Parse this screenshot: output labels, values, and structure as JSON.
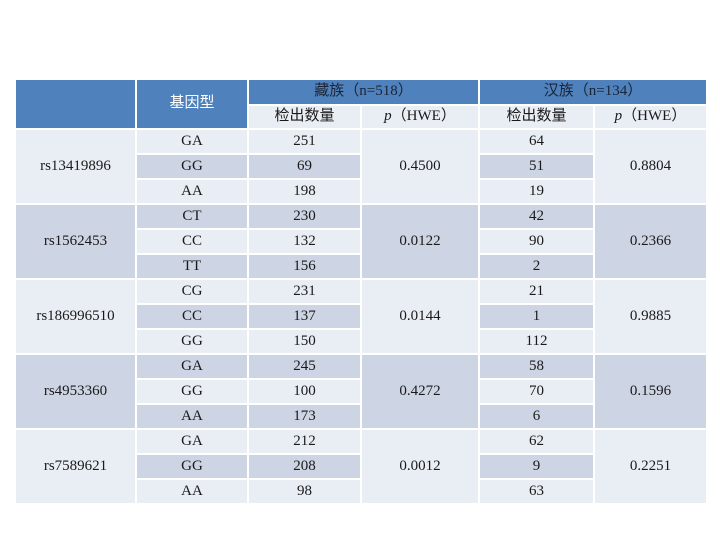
{
  "table": {
    "header": {
      "corner": "",
      "genotype": "基因型",
      "groups": [
        {
          "label": "藏族（n=518）",
          "count_label": "检出数量",
          "p_italic": "p",
          "p_rest": "（HWE）"
        },
        {
          "label": "汉族（n=134）",
          "count_label": "检出数量",
          "p_italic": "p",
          "p_rest": "（HWE）"
        }
      ]
    },
    "rows": [
      {
        "snp": "rs13419896",
        "genotypes": [
          "GA",
          "GG",
          "AA"
        ],
        "tibetan_counts": [
          251,
          69,
          198
        ],
        "tibetan_p": "0.4500",
        "han_counts": [
          64,
          51,
          19
        ],
        "han_p": "0.8804"
      },
      {
        "snp": "rs1562453",
        "genotypes": [
          "CT",
          "CC",
          "TT"
        ],
        "tibetan_counts": [
          230,
          132,
          156
        ],
        "tibetan_p": "0.0122",
        "han_counts": [
          42,
          90,
          2
        ],
        "han_p": "0.2366"
      },
      {
        "snp": "rs186996510",
        "genotypes": [
          "CG",
          "CC",
          "GG"
        ],
        "tibetan_counts": [
          231,
          137,
          150
        ],
        "tibetan_p": "0.0144",
        "han_counts": [
          21,
          1,
          112
        ],
        "han_p": "0.9885"
      },
      {
        "snp": "rs4953360",
        "genotypes": [
          "GA",
          "GG",
          "AA"
        ],
        "tibetan_counts": [
          245,
          100,
          173
        ],
        "tibetan_p": "0.4272",
        "han_counts": [
          58,
          70,
          6
        ],
        "han_p": "0.1596"
      },
      {
        "snp": "rs7589621",
        "genotypes": [
          "GA",
          "GG",
          "AA"
        ],
        "tibetan_counts": [
          212,
          208,
          98
        ],
        "tibetan_p": "0.0012",
        "han_counts": [
          62,
          9,
          63
        ],
        "han_p": "0.2251"
      }
    ]
  },
  "colors": {
    "header_blue": "#4f81bd",
    "band_light": "#e9edf4",
    "band_dark": "#cdd4e3",
    "grid_white": "#ffffff",
    "header_text_dark": "#1c2436",
    "genotype_header_text": "#ffffff",
    "body_text": "#1a1a1a"
  }
}
